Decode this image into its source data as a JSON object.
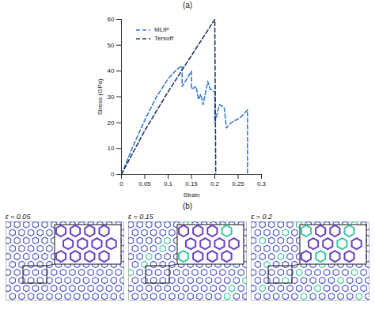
{
  "chart_data": {
    "type": "line",
    "title": "(a)",
    "x_label": "Strain",
    "y_label": "Stress (GPa)",
    "xlim": [
      0,
      0.3
    ],
    "xticks": [
      0,
      0.05,
      0.1,
      0.15,
      0.2,
      0.25,
      0.3
    ],
    "ylim": [
      0,
      60
    ],
    "yticks": [
      0,
      10,
      20,
      30,
      40,
      50,
      60
    ],
    "grid": false,
    "legend": "top-left",
    "series": [
      {
        "name": "MLIP",
        "color": "#3a7bd5",
        "line_style": "dashed",
        "x": [
          0,
          0.025,
          0.05,
          0.075,
          0.1,
          0.115,
          0.125,
          0.13,
          0.13,
          0.15,
          0.15,
          0.16,
          0.165,
          0.17,
          0.175,
          0.185,
          0.19,
          0.2,
          0.2,
          0.21,
          0.22,
          0.225,
          0.235,
          0.255,
          0.265,
          0.27,
          0.27
        ],
        "values": [
          0,
          11,
          21,
          30,
          37,
          40,
          41.5,
          42,
          34,
          40,
          33,
          34,
          29,
          31,
          27,
          36,
          33,
          32,
          20,
          27,
          26,
          18,
          20,
          22,
          24,
          25,
          0
        ]
      },
      {
        "name": "Tersoff",
        "color": "#1f3864",
        "line_style": "dashed",
        "x": [
          0,
          0.05,
          0.1,
          0.15,
          0.2,
          0.202
        ],
        "values": [
          0,
          17,
          32,
          46,
          60,
          0
        ]
      }
    ]
  },
  "panel_b": {
    "label": "(b)",
    "snapshots": [
      "ε = 0.05",
      "ε = 0.15",
      "ε = 0.2"
    ]
  }
}
